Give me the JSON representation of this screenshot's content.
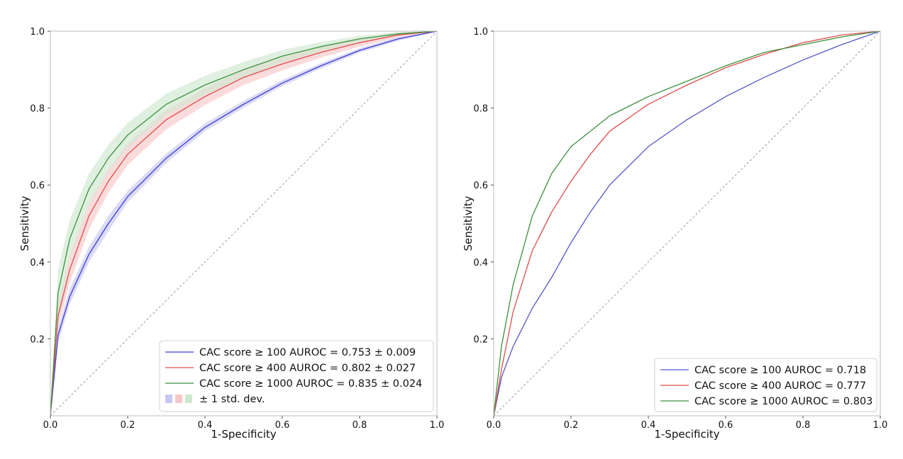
{
  "chart_data": [
    {
      "type": "line",
      "xlabel": "1-Specificity",
      "ylabel": "Sensitivity",
      "xlim": [
        0.0,
        1.0
      ],
      "ylim": [
        0.0,
        1.0
      ],
      "x_ticks": [
        "0.0",
        "0.2",
        "0.4",
        "0.6",
        "0.8",
        "1.0"
      ],
      "y_ticks": [
        "0.2",
        "0.4",
        "0.6",
        "0.8",
        "1.0"
      ],
      "grid": false,
      "legend_position": "bottom-right",
      "chance_line": true,
      "x": [
        0.0,
        0.02,
        0.05,
        0.1,
        0.15,
        0.2,
        0.3,
        0.4,
        0.5,
        0.6,
        0.7,
        0.8,
        0.9,
        1.0
      ],
      "series": [
        {
          "name": "CAC score ≥ 100 AUROC = 0.753 ± 0.009",
          "color": "#3b3bd8",
          "band_color": "#c8c8f4",
          "values": [
            0.0,
            0.21,
            0.31,
            0.42,
            0.5,
            0.57,
            0.67,
            0.75,
            0.81,
            0.865,
            0.91,
            0.95,
            0.98,
            1.0
          ],
          "std": [
            0.0,
            0.02,
            0.02,
            0.02,
            0.02,
            0.015,
            0.012,
            0.01,
            0.009,
            0.008,
            0.007,
            0.006,
            0.005,
            0.0
          ]
        },
        {
          "name": "CAC score ≥ 400 AUROC = 0.802 ± 0.027",
          "color": "#e04b4b",
          "band_color": "#f7c7c7",
          "values": [
            0.0,
            0.26,
            0.38,
            0.52,
            0.61,
            0.68,
            0.77,
            0.83,
            0.88,
            0.915,
            0.945,
            0.97,
            0.99,
            1.0
          ],
          "std": [
            0.0,
            0.03,
            0.035,
            0.035,
            0.03,
            0.028,
            0.025,
            0.022,
            0.02,
            0.017,
            0.014,
            0.01,
            0.006,
            0.0
          ]
        },
        {
          "name": "CAC score ≥ 1000 AUROC = 0.835 ± 0.024",
          "color": "#3c913c",
          "band_color": "#cfe8cf",
          "values": [
            0.0,
            0.32,
            0.46,
            0.59,
            0.67,
            0.73,
            0.81,
            0.86,
            0.9,
            0.935,
            0.96,
            0.98,
            0.993,
            1.0
          ],
          "std": [
            0.0,
            0.06,
            0.05,
            0.04,
            0.035,
            0.032,
            0.028,
            0.024,
            0.02,
            0.016,
            0.012,
            0.008,
            0.005,
            0.0
          ]
        }
      ],
      "legend_std_label": "± 1 std. dev."
    },
    {
      "type": "line",
      "xlabel": "1-Specificity",
      "ylabel": "Sensitivity",
      "xlim": [
        0.0,
        1.0
      ],
      "ylim": [
        0.0,
        1.0
      ],
      "x_ticks": [
        "0.0",
        "0.2",
        "0.4",
        "0.6",
        "0.8",
        "1.0"
      ],
      "y_ticks": [
        "0.2",
        "0.4",
        "0.6",
        "0.8",
        "1.0"
      ],
      "grid": false,
      "legend_position": "bottom-right",
      "chance_line": true,
      "x": [
        0.0,
        0.02,
        0.05,
        0.1,
        0.15,
        0.2,
        0.25,
        0.3,
        0.4,
        0.5,
        0.6,
        0.7,
        0.8,
        0.9,
        1.0
      ],
      "series": [
        {
          "name": "CAC score ≥ 100 AUROC = 0.718",
          "color": "#5555cc",
          "values": [
            0.0,
            0.1,
            0.18,
            0.28,
            0.36,
            0.45,
            0.53,
            0.6,
            0.7,
            0.77,
            0.83,
            0.88,
            0.925,
            0.965,
            1.0
          ]
        },
        {
          "name": "CAC score ≥ 400 AUROC = 0.777",
          "color": "#e04b4b",
          "values": [
            0.0,
            0.12,
            0.27,
            0.43,
            0.53,
            0.61,
            0.68,
            0.74,
            0.81,
            0.86,
            0.905,
            0.94,
            0.97,
            0.99,
            1.0
          ]
        },
        {
          "name": "CAC score ≥ 1000 AUROC = 0.803",
          "color": "#3c913c",
          "values": [
            0.0,
            0.18,
            0.34,
            0.52,
            0.63,
            0.7,
            0.74,
            0.78,
            0.83,
            0.87,
            0.91,
            0.945,
            0.965,
            0.985,
            1.0
          ]
        }
      ]
    }
  ]
}
